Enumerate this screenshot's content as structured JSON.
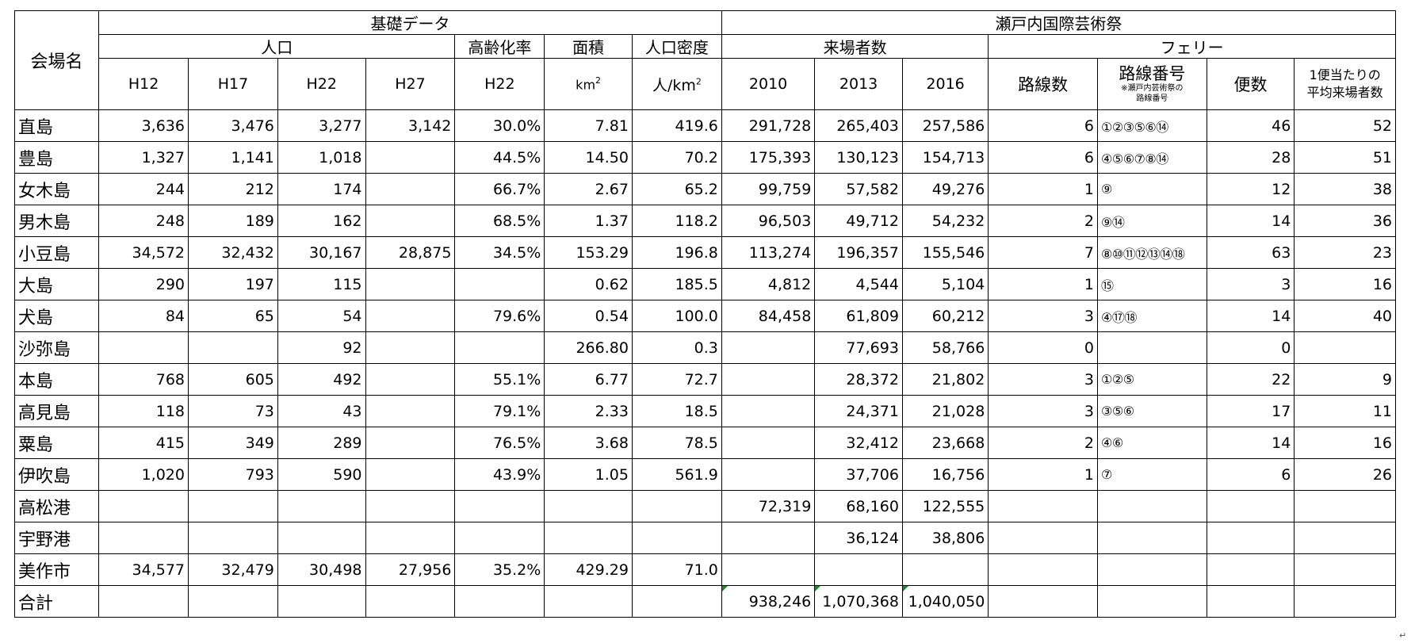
{
  "headers": {
    "venue": "会場名",
    "basic_data": "基礎データ",
    "triennale": "瀬戸内国際芸術祭",
    "population": "人口",
    "aging_rate": "高齢化率",
    "area": "面積",
    "density": "人口密度",
    "visitors": "来場者数",
    "ferry": "フェリー",
    "h12": "H12",
    "h17": "H17",
    "h22": "H22",
    "h27": "H27",
    "aging_year": "H22",
    "area_unit": "km",
    "area_unit_sup": "2",
    "density_unit": "人/km",
    "density_unit_sup": "2",
    "y2010": "2010",
    "y2013": "2013",
    "y2016": "2016",
    "route_count": "路線数",
    "route_number": "路線番号",
    "route_note_1": "※瀬戸内芸術祭の",
    "route_note_2": "路線番号",
    "trips": "便数",
    "avg_line1": "1便当たりの",
    "avg_line2": "平均来場者数"
  },
  "rows": [
    {
      "name": "直島",
      "h12": "3,636",
      "h17": "3,476",
      "h22": "3,277",
      "h27": "3,142",
      "aging": "30.0%",
      "area": "7.81",
      "density": "419.6",
      "v2010": "291,728",
      "v2013": "265,403",
      "v2016": "257,586",
      "routes": "6",
      "route_nums": "①②③⑤⑥⑭",
      "trips": "46",
      "avg": "52"
    },
    {
      "name": "豊島",
      "h12": "1,327",
      "h17": "1,141",
      "h22": "1,018",
      "h27": "",
      "aging": "44.5%",
      "area": "14.50",
      "density": "70.2",
      "v2010": "175,393",
      "v2013": "130,123",
      "v2016": "154,713",
      "routes": "6",
      "route_nums": "④⑤⑥⑦⑧⑭",
      "trips": "28",
      "avg": "51"
    },
    {
      "name": "女木島",
      "h12": "244",
      "h17": "212",
      "h22": "174",
      "h27": "",
      "aging": "66.7%",
      "area": "2.67",
      "density": "65.2",
      "v2010": "99,759",
      "v2013": "57,582",
      "v2016": "49,276",
      "routes": "1",
      "route_nums": "⑨",
      "trips": "12",
      "avg": "38"
    },
    {
      "name": "男木島",
      "h12": "248",
      "h17": "189",
      "h22": "162",
      "h27": "",
      "aging": "68.5%",
      "area": "1.37",
      "density": "118.2",
      "v2010": "96,503",
      "v2013": "49,712",
      "v2016": "54,232",
      "routes": "2",
      "route_nums": "⑨⑭",
      "trips": "14",
      "avg": "36"
    },
    {
      "name": "小豆島",
      "h12": "34,572",
      "h17": "32,432",
      "h22": "30,167",
      "h27": "28,875",
      "aging": "34.5%",
      "area": "153.29",
      "density": "196.8",
      "v2010": "113,274",
      "v2013": "196,357",
      "v2016": "155,546",
      "routes": "7",
      "route_nums": "⑧⑩⑪⑫⑬⑭⑱",
      "trips": "63",
      "avg": "23"
    },
    {
      "name": "大島",
      "h12": "290",
      "h17": "197",
      "h22": "115",
      "h27": "",
      "aging": "",
      "area": "0.62",
      "density": "185.5",
      "v2010": "4,812",
      "v2013": "4,544",
      "v2016": "5,104",
      "routes": "1",
      "route_nums": "⑮",
      "trips": "3",
      "avg": "16"
    },
    {
      "name": "犬島",
      "h12": "84",
      "h17": "65",
      "h22": "54",
      "h27": "",
      "aging": "79.6%",
      "area": "0.54",
      "density": "100.0",
      "v2010": "84,458",
      "v2013": "61,809",
      "v2016": "60,212",
      "routes": "3",
      "route_nums": "④⑰⑱",
      "trips": "14",
      "avg": "40"
    },
    {
      "name": "沙弥島",
      "h12": "",
      "h17": "",
      "h22": "92",
      "h27": "",
      "aging": "",
      "area": "266.80",
      "density": "0.3",
      "v2010": "",
      "v2013": "77,693",
      "v2016": "58,766",
      "routes": "0",
      "route_nums": "",
      "trips": "0",
      "avg": ""
    },
    {
      "name": "本島",
      "h12": "768",
      "h17": "605",
      "h22": "492",
      "h27": "",
      "aging": "55.1%",
      "area": "6.77",
      "density": "72.7",
      "v2010": "",
      "v2013": "28,372",
      "v2016": "21,802",
      "routes": "3",
      "route_nums": "①②⑤",
      "trips": "22",
      "avg": "9"
    },
    {
      "name": "高見島",
      "h12": "118",
      "h17": "73",
      "h22": "43",
      "h27": "",
      "aging": "79.1%",
      "area": "2.33",
      "density": "18.5",
      "v2010": "",
      "v2013": "24,371",
      "v2016": "21,028",
      "routes": "3",
      "route_nums": "③⑤⑥",
      "trips": "17",
      "avg": "11"
    },
    {
      "name": "粟島",
      "h12": "415",
      "h17": "349",
      "h22": "289",
      "h27": "",
      "aging": "76.5%",
      "area": "3.68",
      "density": "78.5",
      "v2010": "",
      "v2013": "32,412",
      "v2016": "23,668",
      "routes": "2",
      "route_nums": "④⑥",
      "trips": "14",
      "avg": "16"
    },
    {
      "name": "伊吹島",
      "h12": "1,020",
      "h17": "793",
      "h22": "590",
      "h27": "",
      "aging": "43.9%",
      "area": "1.05",
      "density": "561.9",
      "v2010": "",
      "v2013": "37,706",
      "v2016": "16,756",
      "routes": "1",
      "route_nums": "⑦",
      "trips": "6",
      "avg": "26"
    },
    {
      "name": "高松港",
      "h12": "",
      "h17": "",
      "h22": "",
      "h27": "",
      "aging": "",
      "area": "",
      "density": "",
      "v2010": "72,319",
      "v2013": "68,160",
      "v2016": "122,555",
      "routes": "",
      "route_nums": "",
      "trips": "",
      "avg": ""
    },
    {
      "name": "宇野港",
      "h12": "",
      "h17": "",
      "h22": "",
      "h27": "",
      "aging": "",
      "area": "",
      "density": "",
      "v2010": "",
      "v2013": "36,124",
      "v2016": "38,806",
      "routes": "",
      "route_nums": "",
      "trips": "",
      "avg": ""
    },
    {
      "name": "美作市",
      "h12": "34,577",
      "h17": "32,479",
      "h22": "30,498",
      "h27": "27,956",
      "aging": "35.2%",
      "area": "429.29",
      "density": "71.0",
      "v2010": "",
      "v2013": "",
      "v2016": "",
      "routes": "",
      "route_nums": "",
      "trips": "",
      "avg": ""
    }
  ],
  "total": {
    "name": "合計",
    "v2010": "938,246",
    "v2013": "1,070,368",
    "v2016": "1,040,050"
  },
  "colors": {
    "error_triangle": "#1a8a2a",
    "border": "#000000"
  }
}
